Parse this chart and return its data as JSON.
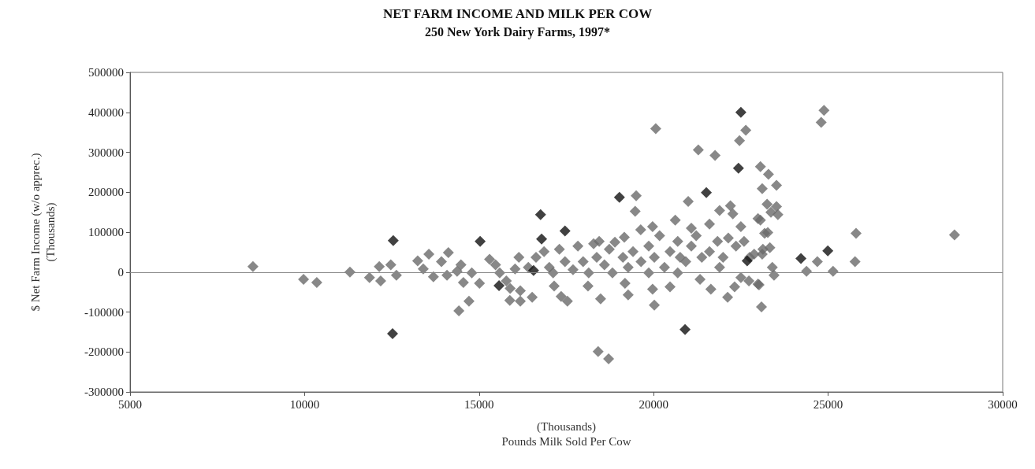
{
  "chart_data": {
    "type": "scatter",
    "title": "NET FARM INCOME AND MILK PER COW",
    "subtitle": "250 New York Dairy Farms, 1997*",
    "xlabel": "(Thousands)\nPounds Milk Sold Per Cow",
    "ylabel": "$ Net Farm Income (w/o apprec.)\n(Thousands)",
    "xlim": [
      5000,
      30000
    ],
    "xticks": [
      5000,
      10000,
      15000,
      20000,
      25000,
      30000
    ],
    "ylim": [
      -300000,
      500000
    ],
    "yticks": [
      -300000,
      -200000,
      -100000,
      0,
      100000,
      200000,
      300000,
      400000,
      500000
    ],
    "marker": "diamond",
    "ref_lines": [
      {
        "axis": "y",
        "value": 0,
        "color": "#888888"
      }
    ],
    "series": [
      {
        "color": "#6a6a6a",
        "x": [
          8520,
          9970,
          10350,
          11300,
          11860,
          12180,
          12140,
          12470,
          12630,
          13240,
          13560,
          13400,
          13690,
          14120,
          14080,
          14370,
          14550,
          14710,
          14420,
          13920,
          20060,
          22640,
          22460,
          21280,
          21760,
          23060,
          23290,
          23110,
          19500,
          19470,
          20990,
          22200,
          21890,
          22270,
          21600,
          20620,
          19630,
          19970,
          22990,
          22500,
          23180,
          22880,
          15880,
          16180,
          16520,
          17530,
          17350,
          18480,
          19270,
          20020,
          19970,
          20470,
          18410,
          18710,
          21330,
          21640,
          22120,
          22500,
          22730,
          22990,
          23090,
          22320,
          18120,
          17150,
          18890,
          19160,
          18440,
          21080,
          24800,
          24880,
          23520,
          23250,
          23520,
          23360,
          23560,
          23060,
          23270,
          23330,
          23110,
          23400,
          23450,
          23020,
          24690,
          24380,
          25140,
          25800,
          25770,
          28620,
          14480,
          14790,
          15010,
          15300,
          15470,
          15590,
          15780,
          16030,
          16140,
          15890,
          16180,
          16410,
          16630,
          16860,
          17010,
          17120,
          17300,
          17460,
          17690,
          17830,
          17980,
          18140,
          18280,
          18370,
          18590,
          18730,
          18820,
          19120,
          19270,
          19410,
          19640,
          19860,
          20020,
          20170,
          20310,
          20470,
          20690,
          20760,
          20920,
          21080,
          21220,
          21380,
          21600,
          21830,
          21990,
          22140,
          22360,
          22590,
          22750,
          23130,
          19180,
          19860,
          20690,
          21890
        ],
        "values": [
          14000,
          -18000,
          -26000,
          0,
          -14000,
          -22000,
          14000,
          18000,
          -8000,
          28000,
          45000,
          8000,
          -12000,
          49000,
          -8000,
          2000,
          -26000,
          -73000,
          -97000,
          26000,
          359000,
          355000,
          329000,
          306000,
          292000,
          264000,
          245000,
          209000,
          191000,
          152000,
          177000,
          166000,
          154000,
          146000,
          120000,
          130000,
          106000,
          114000,
          134000,
          114000,
          97000,
          45000,
          -71000,
          -73000,
          -63000,
          -73000,
          -61000,
          -67000,
          -57000,
          -83000,
          -43000,
          -37000,
          -199000,
          -217000,
          -18000,
          -43000,
          -63000,
          -14000,
          -22000,
          -30000,
          -87000,
          -37000,
          -35000,
          -35000,
          75000,
          87000,
          77000,
          110000,
          375000,
          405000,
          217000,
          170000,
          164000,
          150000,
          144000,
          130000,
          99000,
          61000,
          45000,
          12000,
          -8000,
          -32000,
          26000,
          2000,
          2000,
          97000,
          26000,
          93000,
          18000,
          -2000,
          -28000,
          32000,
          18000,
          -2000,
          -22000,
          8000,
          37000,
          -41000,
          -47000,
          12000,
          37000,
          51000,
          12000,
          -2000,
          57000,
          26000,
          6000,
          65000,
          26000,
          -2000,
          71000,
          37000,
          18000,
          57000,
          -2000,
          37000,
          12000,
          51000,
          26000,
          65000,
          37000,
          91000,
          12000,
          51000,
          77000,
          37000,
          26000,
          65000,
          91000,
          37000,
          51000,
          77000,
          37000,
          85000,
          65000,
          77000,
          37000,
          57000,
          -28000,
          -2000,
          -2000,
          12000
        ]
      },
      {
        "color": "#111111",
        "x": [
          12540,
          12520,
          22430,
          19020,
          21510,
          16760,
          17460,
          16790,
          15030,
          20900,
          22680,
          24220,
          24990,
          22500,
          16560,
          15570
        ],
        "values": [
          79000,
          -154000,
          260000,
          187000,
          199000,
          144000,
          103000,
          83000,
          77000,
          -144000,
          28000,
          34000,
          53000,
          400000,
          4000,
          -34000
        ]
      }
    ]
  }
}
